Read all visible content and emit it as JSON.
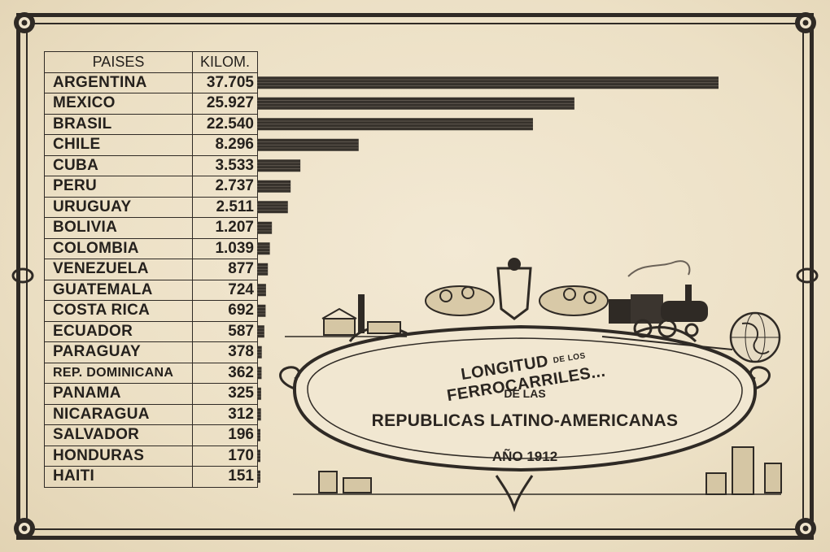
{
  "chart_data": {
    "type": "bar",
    "orientation": "horizontal",
    "headers": {
      "country": "PAISES",
      "value": "KILOM."
    },
    "categories": [
      "ARGENTINA",
      "MEXICO",
      "BRASIL",
      "CHILE",
      "CUBA",
      "PERU",
      "URUGUAY",
      "BOLIVIA",
      "COLOMBIA",
      "VENEZUELA",
      "GUATEMALA",
      "COSTA RICA",
      "ECUADOR",
      "PARAGUAY",
      "REP. DOMINICANA",
      "PANAMA",
      "NICARAGUA",
      "SALVADOR",
      "HONDURAS",
      "HAITI"
    ],
    "values": [
      37705,
      25927,
      22540,
      8296,
      3533,
      2737,
      2511,
      1207,
      1039,
      877,
      724,
      692,
      587,
      378,
      362,
      325,
      312,
      196,
      170,
      151
    ],
    "value_labels": [
      "37.705",
      "25.927",
      "22.540",
      "8.296",
      "3.533",
      "2.737",
      "2.511",
      "1.207",
      "1.039",
      "877",
      "724",
      "692",
      "587",
      "378",
      "362",
      "325",
      "312",
      "196",
      "170",
      "151"
    ],
    "xlim": [
      0,
      37705
    ],
    "title_line1_a": "LONGITUD",
    "title_line1_b": "DE LOS",
    "title_line1_c": "FERROCARRILES...",
    "title_line2": "DE LAS",
    "title_line3": "REPUBLICAS LATINO-AMERICANAS",
    "title_line4": "AÑO 1912",
    "legend": "none",
    "grid": false,
    "bar_color": "#36312b"
  },
  "colors": {
    "paper": "#efe4cc",
    "ink": "#2f2a25"
  }
}
